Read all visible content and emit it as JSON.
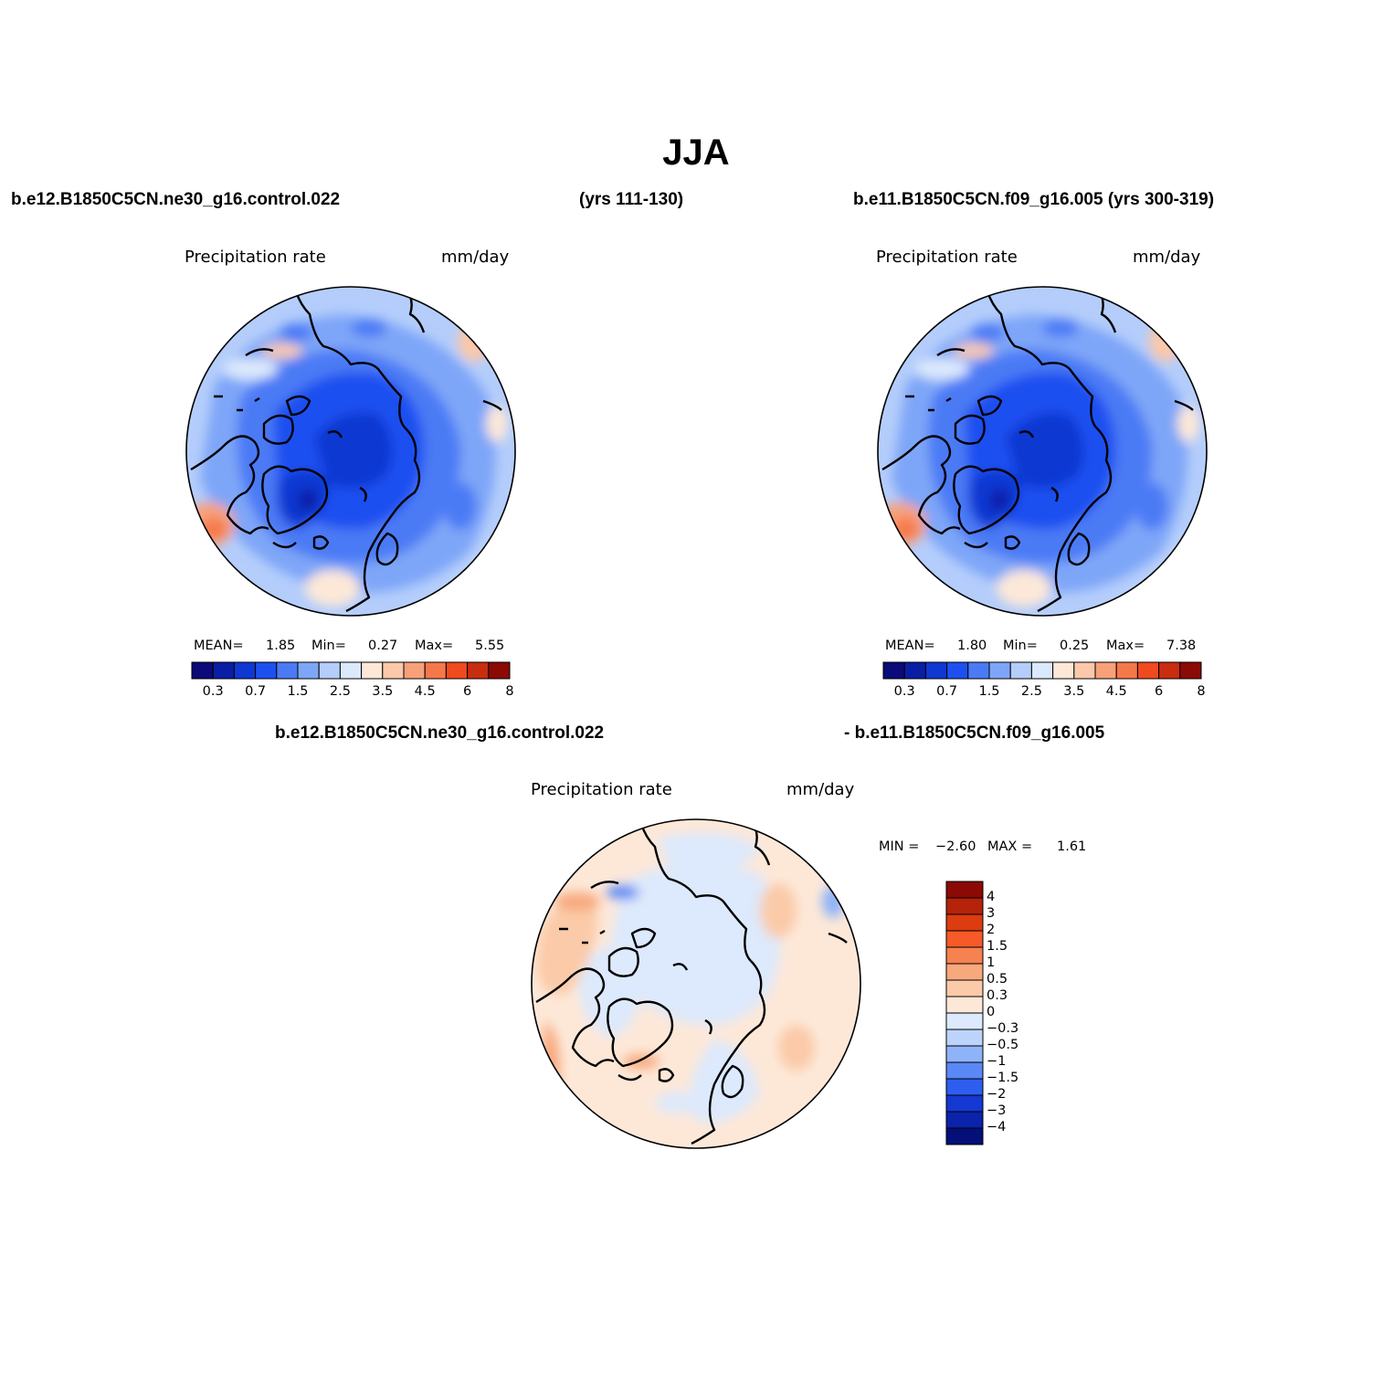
{
  "title": "JJA",
  "panel_left": {
    "case_label": "b.e12.B1850C5CN.ne30_g16.control.022",
    "years_label": "(yrs 111-130)",
    "field_label": "Precipitation rate",
    "units_label": "mm/day",
    "stats": {
      "mean_label": "MEAN=",
      "mean": "1.85",
      "min_label": "Min=",
      "min": "0.27",
      "max_label": "Max=",
      "max": "5.55"
    }
  },
  "panel_right": {
    "case_label": "b.e11.B1850C5CN.f09_g16.005 (yrs 300-319)",
    "field_label": "Precipitation rate",
    "units_label": "mm/day",
    "stats": {
      "mean_label": "MEAN=",
      "mean": "1.80",
      "min_label": "Min=",
      "min": "0.25",
      "max_label": "Max=",
      "max": "7.38"
    }
  },
  "panel_diff": {
    "case_a_label": "b.e12.B1850C5CN.ne30_g16.control.022",
    "case_b_label": "- b.e11.B1850C5CN.f09_g16.005",
    "field_label": "Precipitation rate",
    "units_label": "mm/day",
    "stats": {
      "min_label": "MIN =",
      "min": "−2.60",
      "max_label": "MAX =",
      "max": "1.61"
    }
  },
  "abs_colorbar": {
    "colors": [
      "#0a0a78",
      "#0a1ea5",
      "#0f37d2",
      "#1e50f0",
      "#4b7af5",
      "#7ea6f8",
      "#b4cdfb",
      "#dbe9fc",
      "#fde8d8",
      "#fbc8aa",
      "#f8a07a",
      "#f5784a",
      "#f04a1e",
      "#c82d0f",
      "#8c0a05"
    ],
    "tick_labels": [
      "0.3",
      "0.7",
      "1.5",
      "2.5",
      "3.5",
      "4.5",
      "6",
      "8"
    ]
  },
  "diff_colorbar": {
    "colors_top_to_bottom": [
      "#8c0a05",
      "#b4230a",
      "#dc3c0f",
      "#f55a28",
      "#f5824f",
      "#f8a87d",
      "#fbcaa8",
      "#fde8d8",
      "#dde9fc",
      "#bcd3fb",
      "#8fb3f8",
      "#5a88f4",
      "#2d5ef0",
      "#1438d2",
      "#0a23aa",
      "#050f78"
    ],
    "tick_labels": [
      "4",
      "3",
      "2",
      "1.5",
      "1",
      "0.5",
      "0.3",
      "0",
      "−0.3",
      "−0.5",
      "−1",
      "−1.5",
      "−2",
      "−3",
      "−4"
    ]
  }
}
